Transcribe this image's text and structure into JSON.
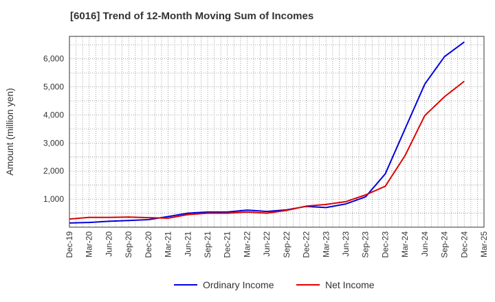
{
  "chart_data": {
    "type": "line",
    "title": "[6016]  Trend of 12-Month Moving Sum of Incomes",
    "xlabel": "",
    "ylabel": "Amount (million yen)",
    "ylim": [
      0,
      6800
    ],
    "yticks": [
      1000,
      2000,
      3000,
      4000,
      5000,
      6000
    ],
    "ytick_labels": [
      "1,000",
      "2,000",
      "3,000",
      "4,000",
      "5,000",
      "6,000"
    ],
    "categories": [
      "Dec-19",
      "Mar-20",
      "Jun-20",
      "Sep-20",
      "Dec-20",
      "Mar-21",
      "Jun-21",
      "Sep-21",
      "Dec-21",
      "Mar-22",
      "Jun-22",
      "Sep-22",
      "Dec-22",
      "Mar-23",
      "Jun-23",
      "Sep-23",
      "Dec-23",
      "Mar-24",
      "Jun-24",
      "Sep-24",
      "Dec-24",
      "Mar-25"
    ],
    "grid": true,
    "legend_position": "bottom",
    "series": [
      {
        "name": "Ordinary Income",
        "color": "#0000dd",
        "values": [
          150,
          170,
          210,
          240,
          270,
          380,
          500,
          540,
          540,
          610,
          560,
          620,
          740,
          700,
          830,
          1080,
          1900,
          3500,
          5100,
          6080,
          6600,
          null
        ]
      },
      {
        "name": "Net Income",
        "color": "#dd0000",
        "values": [
          290,
          350,
          350,
          360,
          340,
          320,
          450,
          500,
          500,
          540,
          500,
          600,
          750,
          810,
          910,
          1150,
          1460,
          2550,
          3980,
          4650,
          5200,
          null
        ]
      }
    ]
  }
}
